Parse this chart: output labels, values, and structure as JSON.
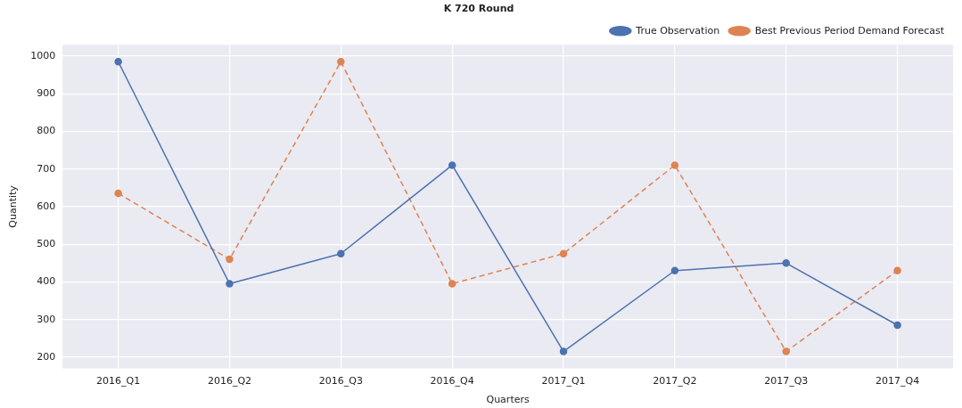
{
  "chart_data": {
    "type": "line",
    "title": "K 720 Round",
    "xlabel": "Quarters",
    "ylabel": "Quantity",
    "categories": [
      "2016_Q1",
      "2016_Q2",
      "2016_Q3",
      "2016_Q4",
      "2017_Q1",
      "2017_Q2",
      "2017_Q3",
      "2017_Q4"
    ],
    "series": [
      {
        "name": "True Observation",
        "color": "#4c72b0",
        "line_style": "solid",
        "values": [
          985,
          395,
          475,
          710,
          215,
          430,
          450,
          285
        ]
      },
      {
        "name": "Best Previous Period Demand Forecast",
        "color": "#dd8452",
        "line_style": "dashed",
        "values": [
          635,
          460,
          985,
          395,
          475,
          710,
          215,
          430
        ]
      }
    ],
    "ylim": [
      170,
      1030
    ],
    "yticks": [
      200,
      300,
      400,
      500,
      600,
      700,
      800,
      900,
      1000
    ],
    "grid": true,
    "legend": "top right",
    "marker": "circle"
  }
}
